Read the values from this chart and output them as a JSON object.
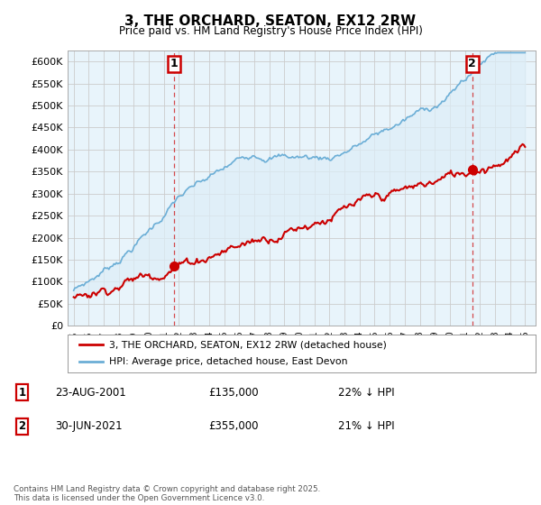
{
  "title": "3, THE ORCHARD, SEATON, EX12 2RW",
  "subtitle": "Price paid vs. HM Land Registry's House Price Index (HPI)",
  "ylim": [
    0,
    620000
  ],
  "yticks": [
    0,
    50000,
    100000,
    150000,
    200000,
    250000,
    300000,
    350000,
    400000,
    450000,
    500000,
    550000,
    600000
  ],
  "hpi_color": "#6baed6",
  "hpi_fill_color": "#ddeef8",
  "price_color": "#cc0000",
  "dashed_color": "#cc0000",
  "grid_color": "#cccccc",
  "background_color": "#ffffff",
  "chart_bg_color": "#e8f4fb",
  "legend_label_price": "3, THE ORCHARD, SEATON, EX12 2RW (detached house)",
  "legend_label_hpi": "HPI: Average price, detached house, East Devon",
  "annotation1_label": "1",
  "annotation1_date": "23-AUG-2001",
  "annotation1_price": "£135,000",
  "annotation1_hpi": "22% ↓ HPI",
  "annotation2_label": "2",
  "annotation2_date": "30-JUN-2021",
  "annotation2_price": "£355,000",
  "annotation2_hpi": "21% ↓ HPI",
  "footnote": "Contains HM Land Registry data © Crown copyright and database right 2025.\nThis data is licensed under the Open Government Licence v3.0.",
  "xstart_year": 1995,
  "xend_year": 2025,
  "sale1_year": 2001.646,
  "sale1_price": 135000,
  "sale2_year": 2021.496,
  "sale2_price": 355000
}
